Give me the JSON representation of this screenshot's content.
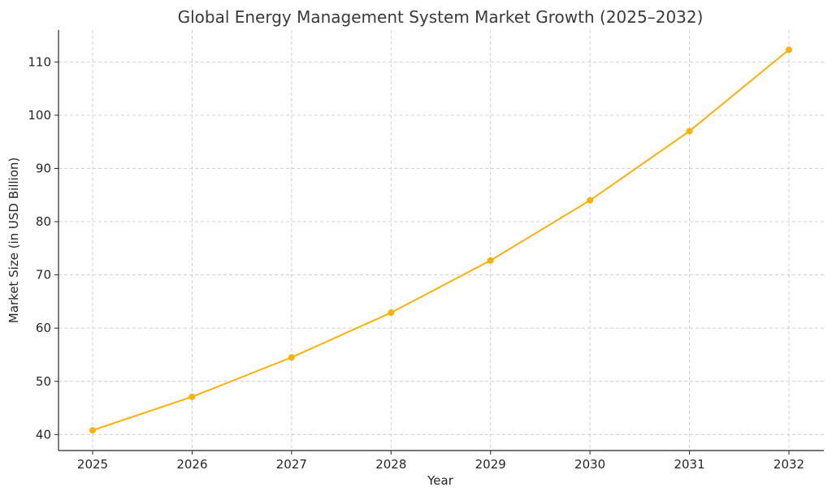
{
  "chart_data": {
    "type": "line",
    "title": "Global Energy Management System Market Growth (2025–2032)",
    "xlabel": "Year",
    "ylabel": "Market Size (in USD Billion)",
    "x": [
      "2025",
      "2026",
      "2027",
      "2028",
      "2029",
      "2030",
      "2031",
      "2032"
    ],
    "series": [
      {
        "values": [
          40.8,
          47.1,
          54.5,
          62.9,
          72.7,
          84.0,
          97.0,
          112.3
        ],
        "color": "#FFB000"
      }
    ],
    "yticks": [
      "40",
      "50",
      "60",
      "70",
      "80",
      "90",
      "100",
      "110"
    ],
    "ylim": [
      37,
      116
    ],
    "grid": true,
    "marker": "circle"
  }
}
